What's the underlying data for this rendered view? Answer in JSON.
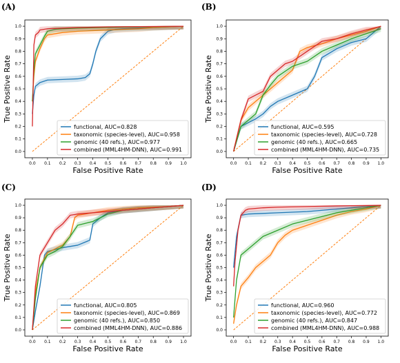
{
  "series_colors": {
    "functional": "#1f77b4",
    "taxonomic": "#ff7f0e",
    "genomic": "#2ca02c",
    "combined": "#d62728"
  },
  "chance_line_color": "#ff7f0e",
  "chart_data": [
    {
      "panel": "(A)",
      "type": "line",
      "xlabel": "False Positive Rate",
      "ylabel": "True Positive Rate",
      "xlim": [
        0,
        1
      ],
      "ylim": [
        0,
        1
      ],
      "xticks": [
        "0.0",
        "0.1",
        "0.2",
        "0.3",
        "0.4",
        "0.5",
        "0.6",
        "0.7",
        "0.8",
        "0.9",
        "1.0"
      ],
      "yticks": [
        "0.0",
        "0.1",
        "0.2",
        "0.3",
        "0.4",
        "0.5",
        "0.6",
        "0.7",
        "0.8",
        "0.9",
        "1.0"
      ],
      "legend_position": "lower-right",
      "series": [
        {
          "key": "functional",
          "name": "functional, AUC=0.828",
          "x": [
            0,
            0.01,
            0.02,
            0.05,
            0.1,
            0.2,
            0.3,
            0.35,
            0.38,
            0.4,
            0.42,
            0.45,
            0.5,
            0.55,
            0.6,
            0.7,
            0.8,
            0.9,
            1.0
          ],
          "y": [
            0.3,
            0.45,
            0.52,
            0.55,
            0.57,
            0.575,
            0.58,
            0.59,
            0.62,
            0.7,
            0.8,
            0.9,
            0.96,
            0.975,
            0.98,
            0.985,
            0.99,
            0.995,
            1.0
          ]
        },
        {
          "key": "taxonomic",
          "name": "taxonomic (species-level), AUC=0.958",
          "x": [
            0,
            0.01,
            0.02,
            0.05,
            0.08,
            0.1,
            0.2,
            0.3,
            0.4,
            0.5,
            0.6,
            0.7,
            0.8,
            0.9,
            1.0
          ],
          "y": [
            0.4,
            0.6,
            0.72,
            0.82,
            0.9,
            0.93,
            0.95,
            0.96,
            0.965,
            0.97,
            0.975,
            0.98,
            0.99,
            0.995,
            1.0
          ]
        },
        {
          "key": "genomic",
          "name": "genomic (40 refs.), AUC=0.977",
          "x": [
            0,
            0.01,
            0.02,
            0.05,
            0.08,
            0.1,
            0.15,
            0.2,
            0.3,
            0.5,
            0.7,
            0.9,
            1.0
          ],
          "y": [
            0.4,
            0.65,
            0.78,
            0.85,
            0.92,
            0.96,
            0.975,
            0.98,
            0.985,
            0.99,
            0.995,
            0.998,
            1.0
          ]
        },
        {
          "key": "combined",
          "name": "combined (MML4HM-DNN), AUC=0.991",
          "x": [
            0,
            0.005,
            0.01,
            0.02,
            0.04,
            0.05,
            0.1,
            0.2,
            0.3,
            0.5,
            0.7,
            0.9,
            1.0
          ],
          "y": [
            0.2,
            0.5,
            0.85,
            0.93,
            0.95,
            0.97,
            0.98,
            0.985,
            0.99,
            0.995,
            0.997,
            0.999,
            1.0
          ]
        }
      ]
    },
    {
      "panel": "(B)",
      "type": "line",
      "xlabel": "False Positive Rate",
      "ylabel": "True Positive Rate",
      "xlim": [
        0,
        1
      ],
      "ylim": [
        0,
        1
      ],
      "xticks": [
        "0.0",
        "0.1",
        "0.2",
        "0.3",
        "0.4",
        "0.5",
        "0.6",
        "0.7",
        "0.8",
        "0.9",
        "1.0"
      ],
      "yticks": [
        "0.0",
        "0.1",
        "0.2",
        "0.3",
        "0.4",
        "0.5",
        "0.6",
        "0.7",
        "0.8",
        "0.9",
        "1.0"
      ],
      "legend_position": "lower-right",
      "series": [
        {
          "key": "functional",
          "name": "functional, AUC=0.595",
          "x": [
            0,
            0.05,
            0.1,
            0.15,
            0.2,
            0.25,
            0.3,
            0.4,
            0.5,
            0.55,
            0.6,
            0.7,
            0.8,
            0.9,
            1.0
          ],
          "y": [
            0,
            0.2,
            0.23,
            0.26,
            0.3,
            0.36,
            0.4,
            0.45,
            0.5,
            0.6,
            0.75,
            0.82,
            0.87,
            0.9,
            1.0
          ]
        },
        {
          "key": "taxonomic",
          "name": "taxonomic (species-level), AUC=0.728",
          "x": [
            0,
            0.05,
            0.1,
            0.2,
            0.3,
            0.4,
            0.45,
            0.5,
            0.6,
            0.7,
            0.8,
            0.9,
            1.0
          ],
          "y": [
            0,
            0.25,
            0.35,
            0.45,
            0.55,
            0.65,
            0.8,
            0.83,
            0.86,
            0.9,
            0.93,
            0.96,
            1.0
          ]
        },
        {
          "key": "genomic",
          "name": "genomic (40 refs.), AUC=0.665",
          "x": [
            0,
            0.05,
            0.1,
            0.15,
            0.2,
            0.25,
            0.3,
            0.4,
            0.5,
            0.6,
            0.7,
            0.8,
            0.9,
            1.0
          ],
          "y": [
            0,
            0.2,
            0.25,
            0.3,
            0.45,
            0.53,
            0.6,
            0.68,
            0.72,
            0.8,
            0.85,
            0.9,
            0.94,
            0.98
          ]
        },
        {
          "key": "combined",
          "name": "combined (MML4HM-DNN), AUC=0.735",
          "x": [
            0,
            0.05,
            0.1,
            0.15,
            0.2,
            0.25,
            0.3,
            0.35,
            0.4,
            0.5,
            0.6,
            0.7,
            0.8,
            0.9,
            1.0
          ],
          "y": [
            0,
            0.25,
            0.42,
            0.45,
            0.48,
            0.6,
            0.65,
            0.7,
            0.72,
            0.8,
            0.88,
            0.9,
            0.94,
            0.97,
            1.0
          ]
        }
      ]
    },
    {
      "panel": "(C)",
      "type": "line",
      "xlabel": "False Positive Rate",
      "ylabel": "True Positive Rate",
      "xlim": [
        0,
        1
      ],
      "ylim": [
        0,
        1
      ],
      "xticks": [
        "0.0",
        "0.1",
        "0.2",
        "0.3",
        "0.4",
        "0.5",
        "0.6",
        "0.7",
        "0.8",
        "0.9",
        "1.0"
      ],
      "yticks": [
        "0.0",
        "0.1",
        "0.2",
        "0.3",
        "0.4",
        "0.5",
        "0.6",
        "0.7",
        "0.8",
        "0.9",
        "1.0"
      ],
      "legend_position": "lower-right",
      "series": [
        {
          "key": "functional",
          "name": "functional, AUC=0.805",
          "x": [
            0,
            0.02,
            0.05,
            0.08,
            0.1,
            0.2,
            0.3,
            0.38,
            0.4,
            0.45,
            0.5,
            0.6,
            0.7,
            0.8,
            0.9,
            1.0
          ],
          "y": [
            0,
            0.15,
            0.35,
            0.6,
            0.63,
            0.66,
            0.68,
            0.72,
            0.85,
            0.9,
            0.94,
            0.96,
            0.97,
            0.98,
            0.99,
            1.0
          ]
        },
        {
          "key": "taxonomic",
          "name": "taxonomic (species-level), AUC=0.869",
          "x": [
            0,
            0.02,
            0.05,
            0.1,
            0.2,
            0.25,
            0.28,
            0.3,
            0.4,
            0.5,
            0.6,
            0.7,
            0.8,
            0.9,
            1.0
          ],
          "y": [
            0,
            0.3,
            0.5,
            0.62,
            0.68,
            0.75,
            0.9,
            0.92,
            0.94,
            0.96,
            0.97,
            0.98,
            0.985,
            0.99,
            1.0
          ]
        },
        {
          "key": "genomic",
          "name": "genomic (40 refs.), AUC=0.850",
          "x": [
            0,
            0.02,
            0.05,
            0.1,
            0.15,
            0.2,
            0.25,
            0.3,
            0.4,
            0.45,
            0.5,
            0.6,
            0.7,
            0.8,
            0.9,
            1.0
          ],
          "y": [
            0,
            0.25,
            0.5,
            0.6,
            0.63,
            0.67,
            0.75,
            0.84,
            0.87,
            0.9,
            0.93,
            0.96,
            0.97,
            0.98,
            0.99,
            1.0
          ]
        },
        {
          "key": "combined",
          "name": "combined (MML4HM-DNN), AUC=0.886",
          "x": [
            0,
            0.02,
            0.05,
            0.1,
            0.15,
            0.2,
            0.25,
            0.3,
            0.4,
            0.5,
            0.6,
            0.7,
            0.8,
            0.9,
            1.0
          ],
          "y": [
            0,
            0.35,
            0.6,
            0.7,
            0.8,
            0.85,
            0.92,
            0.93,
            0.94,
            0.95,
            0.96,
            0.97,
            0.98,
            0.99,
            1.0
          ]
        }
      ]
    },
    {
      "panel": "(D)",
      "type": "line",
      "xlabel": "False Positive Rate",
      "ylabel": "True Positive Rate",
      "xlim": [
        0,
        1
      ],
      "ylim": [
        0,
        1
      ],
      "xticks": [
        "0.0",
        "0.1",
        "0.2",
        "0.3",
        "0.4",
        "0.5",
        "0.6",
        "0.7",
        "0.8",
        "0.9",
        "1.0"
      ],
      "yticks": [
        "0.0",
        "0.1",
        "0.2",
        "0.3",
        "0.4",
        "0.5",
        "0.6",
        "0.7",
        "0.8",
        "0.9",
        "1.0"
      ],
      "legend_position": "lower-right",
      "series": [
        {
          "key": "functional",
          "name": "functional, AUC=0.960",
          "x": [
            0,
            0.02,
            0.05,
            0.1,
            0.2,
            0.3,
            0.5,
            0.7,
            0.9,
            1.0
          ],
          "y": [
            0.5,
            0.75,
            0.92,
            0.93,
            0.935,
            0.94,
            0.95,
            0.97,
            0.99,
            1.0
          ]
        },
        {
          "key": "taxonomic",
          "name": "taxonomic (species-level), AUC=0.772",
          "x": [
            0,
            0.02,
            0.05,
            0.1,
            0.15,
            0.2,
            0.25,
            0.3,
            0.35,
            0.4,
            0.5,
            0.6,
            0.7,
            0.8,
            0.9,
            1.0
          ],
          "y": [
            0.05,
            0.2,
            0.35,
            0.42,
            0.5,
            0.55,
            0.6,
            0.7,
            0.76,
            0.8,
            0.84,
            0.88,
            0.92,
            0.95,
            0.97,
            1.0
          ]
        },
        {
          "key": "genomic",
          "name": "genomic (40 refs.), AUC=0.847",
          "x": [
            0,
            0.02,
            0.05,
            0.1,
            0.15,
            0.2,
            0.3,
            0.4,
            0.5,
            0.6,
            0.7,
            0.8,
            0.9,
            1.0
          ],
          "y": [
            0.1,
            0.4,
            0.6,
            0.65,
            0.7,
            0.75,
            0.8,
            0.85,
            0.88,
            0.91,
            0.94,
            0.96,
            0.98,
            1.0
          ]
        },
        {
          "key": "combined",
          "name": "combined (MML4HM-DNN), AUC=0.988",
          "x": [
            0,
            0.01,
            0.03,
            0.05,
            0.08,
            0.1,
            0.2,
            0.3,
            0.5,
            0.7,
            1.0
          ],
          "y": [
            0.35,
            0.55,
            0.8,
            0.92,
            0.96,
            0.97,
            0.98,
            0.985,
            0.99,
            0.995,
            1.0
          ]
        }
      ]
    }
  ]
}
